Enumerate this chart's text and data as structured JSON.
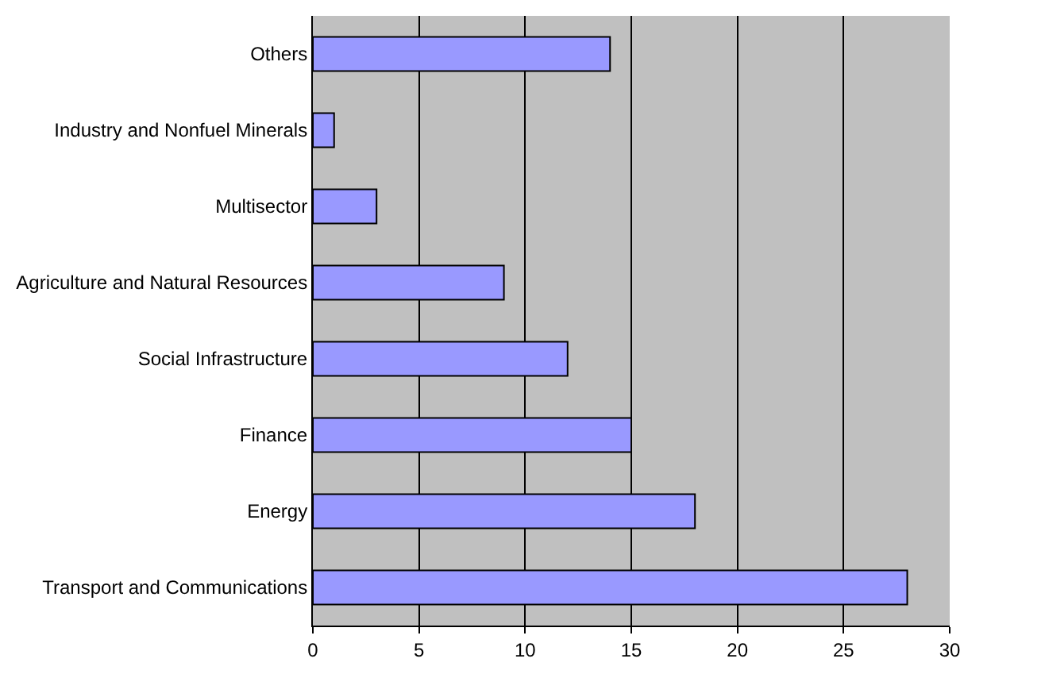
{
  "chart_data": {
    "type": "bar",
    "orientation": "horizontal",
    "categories": [
      "Others",
      "Industry and Nonfuel Minerals",
      "Multisector",
      "Agriculture and Natural Resources",
      "Social Infrastructure",
      "Finance",
      "Energy",
      "Transport and Communications"
    ],
    "values": [
      14,
      1,
      3,
      9,
      12,
      15,
      18,
      28
    ],
    "color": "#9999ff",
    "xlim": [
      0,
      30
    ],
    "xticks": [
      0,
      5,
      10,
      15,
      20,
      25,
      30
    ],
    "grid": "x",
    "legend": false
  }
}
